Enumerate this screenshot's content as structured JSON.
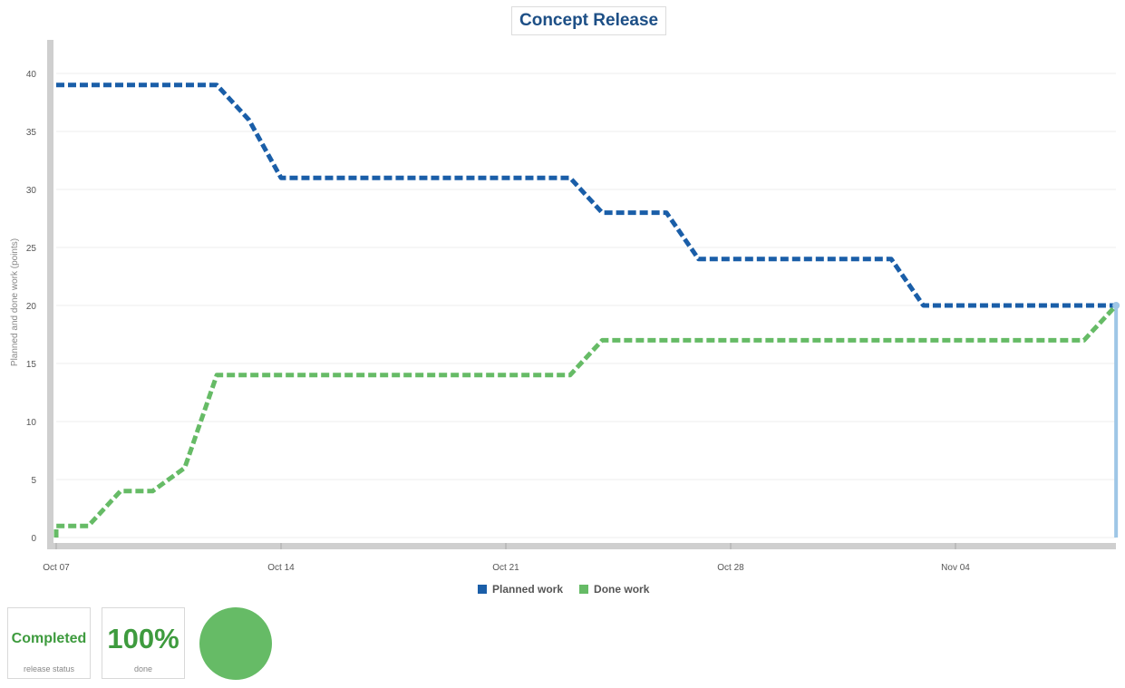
{
  "chart_data": {
    "type": "line",
    "title": "Concept Release",
    "ylabel": "Planned and done work (points)",
    "xlabel": "",
    "ylim": [
      0,
      40
    ],
    "yticks": [
      0,
      5,
      10,
      15,
      20,
      25,
      30,
      35,
      40
    ],
    "x_start": "Oct 07",
    "x_end": "Nov 09",
    "xticks": [
      {
        "label": "Oct 07",
        "day": 0
      },
      {
        "label": "Oct 14",
        "day": 7
      },
      {
        "label": "Oct 21",
        "day": 14
      },
      {
        "label": "Oct 28",
        "day": 21
      },
      {
        "label": "Nov 04",
        "day": 28
      }
    ],
    "grid": true,
    "legend_position": "bottom-center",
    "series": [
      {
        "name": "Planned work",
        "color": "#1a5ea8",
        "points": [
          [
            0,
            39
          ],
          [
            5,
            39
          ],
          [
            6,
            36
          ],
          [
            7,
            31
          ],
          [
            16,
            31
          ],
          [
            17,
            28
          ],
          [
            19,
            28
          ],
          [
            20,
            24
          ],
          [
            26,
            24
          ],
          [
            27,
            20
          ],
          [
            33,
            20
          ]
        ]
      },
      {
        "name": "Done work",
        "color": "#66bb66",
        "points": [
          [
            0,
            0
          ],
          [
            0,
            1
          ],
          [
            1,
            1
          ],
          [
            2,
            4
          ],
          [
            3,
            4
          ],
          [
            4,
            6
          ],
          [
            5,
            14
          ],
          [
            16,
            14
          ],
          [
            17,
            17
          ],
          [
            32,
            17
          ],
          [
            33,
            20
          ]
        ]
      }
    ],
    "today_marker": {
      "day": 33,
      "value": 20,
      "color": "#9ec6e6"
    }
  },
  "summary": {
    "status_value": "Completed",
    "status_caption": "release status",
    "done_value": "100%",
    "done_caption": "done",
    "done_fraction": 1.0,
    "done_color": "#66bb66"
  }
}
